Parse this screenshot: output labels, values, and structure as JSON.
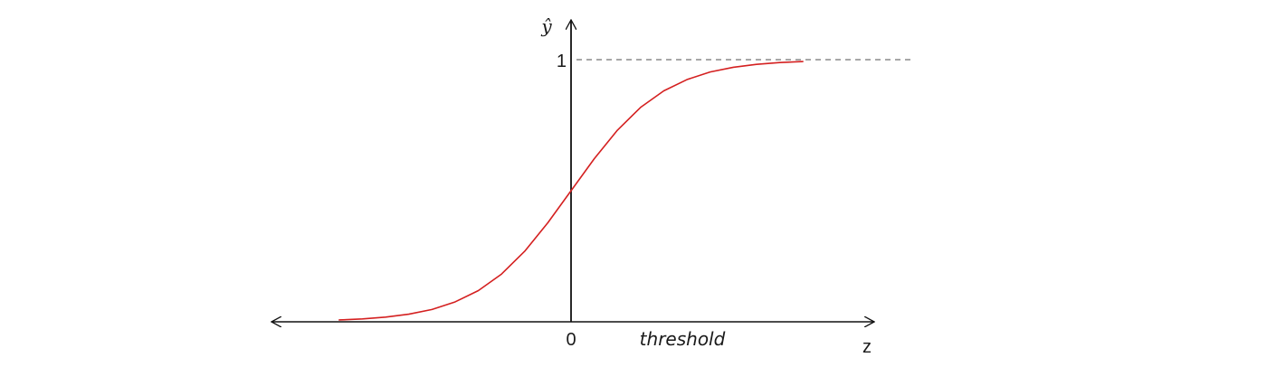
{
  "chart_data": {
    "type": "line",
    "y_axis_label": "ŷ",
    "x_axis_label": "z",
    "origin_label": "0",
    "annotation": "threshold",
    "asymptote_label": "1",
    "asymptote_value": 1,
    "asymptote_style": "dashed",
    "xlim": [
      -6,
      7
    ],
    "ylim": [
      0,
      1.12
    ],
    "grid": false,
    "series": [
      {
        "color": "#d42020",
        "x": [
          -5,
          -4.5,
          -4,
          -3.5,
          -3,
          -2.5,
          -2,
          -1.5,
          -1,
          -0.5,
          0,
          0.5,
          1,
          1.5,
          2,
          2.5,
          3,
          3.5,
          4,
          4.5,
          5
        ],
        "y": [
          0.007,
          0.011,
          0.018,
          0.029,
          0.047,
          0.076,
          0.119,
          0.182,
          0.269,
          0.378,
          0.5,
          0.622,
          0.731,
          0.818,
          0.881,
          0.924,
          0.953,
          0.971,
          0.982,
          0.989,
          0.993
        ]
      }
    ]
  }
}
